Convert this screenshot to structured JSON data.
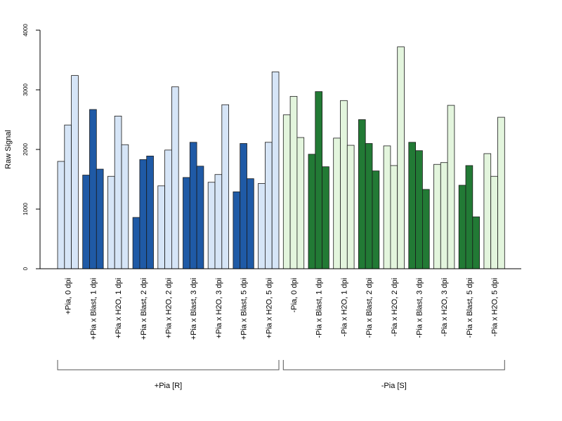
{
  "chart_data": {
    "type": "bar",
    "ylabel": "Raw Signal",
    "ylim": [
      0,
      4000
    ],
    "yticks": [
      "0",
      "1000",
      "2000",
      "3000",
      "4000"
    ],
    "grid": false,
    "bars_per_category": 3,
    "categories": [
      "+Pia, 0 dpi",
      "+Pia x Blast, 1 dpi",
      "+Pia x H2O, 1 dpi",
      "+Pia x Blast, 2 dpi",
      "+Pia x H2O, 2 dpi",
      "+Pia x Blast, 3 dpi",
      "+Pia x H2O, 3 dpi",
      "+Pia x Blast, 5 dpi",
      "+Pia x H2O, 5 dpi",
      "-Pia, 0 dpi",
      "-Pia x Blast, 1 dpi",
      "-Pia x H2O, 1 dpi",
      "-Pia x Blast, 2 dpi",
      "-Pia x H2O, 2 dpi",
      "-Pia x Blast, 3 dpi",
      "-Pia x H2O, 3 dpi",
      "-Pia x Blast, 5 dpi",
      "-Pia x H2O, 5 dpi"
    ],
    "values": [
      [
        1800,
        2410,
        3240
      ],
      [
        1570,
        2670,
        1670
      ],
      [
        1550,
        2560,
        2080
      ],
      [
        860,
        1830,
        1890
      ],
      [
        1390,
        1990,
        3050
      ],
      [
        1530,
        2120,
        1720
      ],
      [
        1450,
        1580,
        2750
      ],
      [
        1290,
        2100,
        1510
      ],
      [
        1430,
        2120,
        3300
      ],
      [
        2580,
        2890,
        2200
      ],
      [
        1920,
        2970,
        1710
      ],
      [
        2190,
        2820,
        2070
      ],
      [
        2500,
        2100,
        1640
      ],
      [
        2060,
        1730,
        3720
      ],
      [
        2120,
        1980,
        1330
      ],
      [
        1750,
        1780,
        2740
      ],
      [
        1400,
        1730,
        870
      ],
      [
        1930,
        1550,
        2540
      ]
    ],
    "bar_colors": [
      "#d6e5f7",
      "#1f5aa6",
      "#d6e5f7",
      "#1f5aa6",
      "#d6e5f7",
      "#1f5aa6",
      "#d6e5f7",
      "#1f5aa6",
      "#d6e5f7",
      "#e3f5dd",
      "#227a35",
      "#e3f5dd",
      "#227a35",
      "#e3f5dd",
      "#227a35",
      "#e3f5dd",
      "#227a35",
      "#e3f5dd"
    ],
    "groups": [
      {
        "label": "+Pia [R]",
        "from": 0,
        "to": 8
      },
      {
        "label": "-Pia [S]",
        "from": 9,
        "to": 17
      }
    ]
  }
}
